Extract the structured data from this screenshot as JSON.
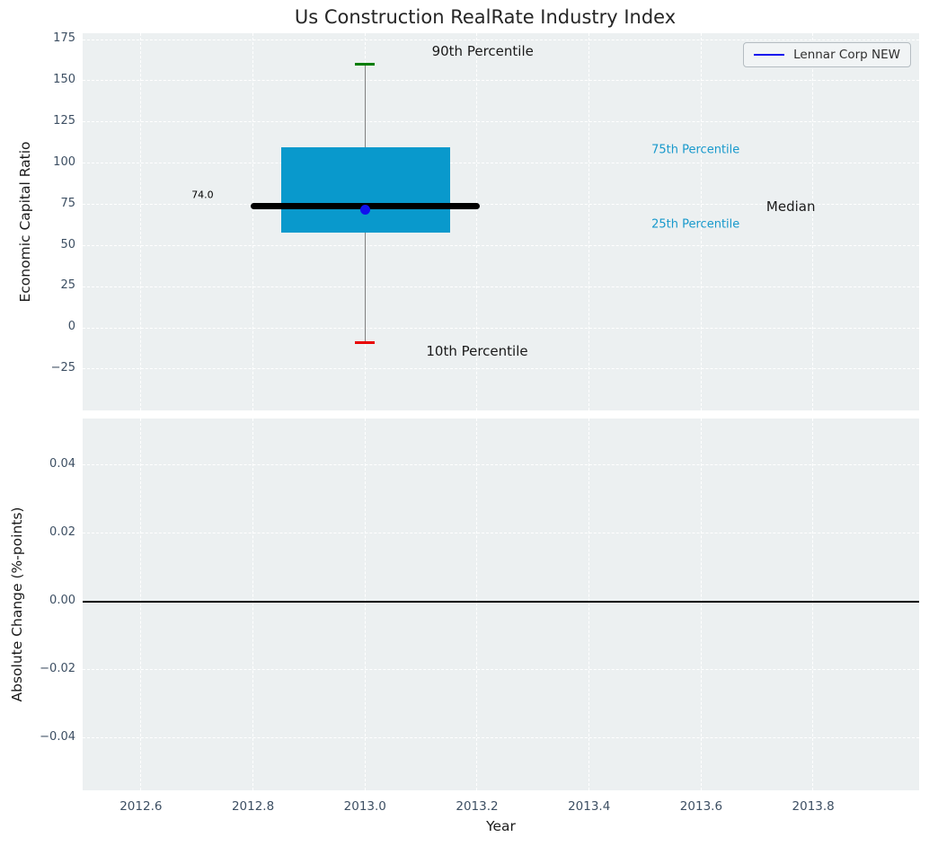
{
  "title": "Us Construction RealRate Industry Index",
  "legend": {
    "label": "Lennar Corp NEW",
    "line_color": "#1111ee"
  },
  "colors": {
    "plot_bg": "#ecf0f1",
    "grid": "#ffffff",
    "box_fill": "#0999cc",
    "median": "#000000",
    "whisker": "#808080",
    "cap_top": "#007d00",
    "cap_bottom": "#e80000",
    "company": "#1111ee",
    "tick_text": "#3d4f63",
    "percentile_text": "#1899cc",
    "zero_line": "#000000"
  },
  "chart_data": [
    {
      "type": "boxplot",
      "title": "Us Construction RealRate Industry Index",
      "ylabel": "Economic Capital Ratio",
      "xlim": [
        2012.496,
        2013.989
      ],
      "ylim": [
        -50,
        179
      ],
      "grid": true,
      "legend_position": "top-right",
      "yticks": {
        "labels": [
          "175",
          "150",
          "125",
          "100",
          "75",
          "50",
          "25",
          "0",
          "−25"
        ],
        "values": [
          175,
          150,
          125,
          100,
          75,
          50,
          25,
          0,
          -25
        ]
      },
      "box": {
        "x": 2013.0,
        "x_left": 2012.85,
        "x_right": 2013.152,
        "q1": 58,
        "q3": 110,
        "median": 74.0,
        "median_x_left": 2012.796,
        "median_x_right": 2013.205,
        "p10": -9,
        "p90": 160
      },
      "company_point": {
        "name": "Lennar Corp NEW",
        "x": 2013.0,
        "y": 72
      },
      "annotations": [
        {
          "name": "median-value-label",
          "text": "74.0",
          "x": 2012.71,
          "y": 81,
          "color": "#000000",
          "size": 11
        },
        {
          "name": "p90-label",
          "text": "90th Percentile",
          "x": 2013.21,
          "y": 168,
          "color": "#1a1a1a",
          "size": 15
        },
        {
          "name": "p10-label",
          "text": "10th Percentile",
          "x": 2013.2,
          "y": -14,
          "color": "#1a1a1a",
          "size": 15
        },
        {
          "name": "p75-label",
          "text": "75th Percentile",
          "x": 2013.59,
          "y": 108,
          "color": "#1899cc",
          "size": 13
        },
        {
          "name": "p25-label",
          "text": "25th Percentile",
          "x": 2013.59,
          "y": 63,
          "color": "#1899cc",
          "size": 13
        },
        {
          "name": "median-label",
          "text": "Median",
          "x": 2013.76,
          "y": 74,
          "color": "#1a1a1a",
          "size": 15
        }
      ]
    },
    {
      "type": "line",
      "ylabel": "Absolute Change (%-points)",
      "xlabel": "Year",
      "xlim": [
        2012.496,
        2013.989
      ],
      "ylim": [
        -0.0553,
        0.0537
      ],
      "grid": true,
      "zero_line": 0.0,
      "yticks": {
        "labels": [
          "0.04",
          "0.02",
          "0.00",
          "−0.02",
          "−0.04"
        ],
        "values": [
          0.04,
          0.02,
          0.0,
          -0.02,
          -0.04
        ]
      },
      "xticks": {
        "labels": [
          "2012.6",
          "2012.8",
          "2013.0",
          "2013.2",
          "2013.4",
          "2013.6",
          "2013.8"
        ],
        "values": [
          2012.6,
          2012.8,
          2013.0,
          2013.2,
          2013.4,
          2013.6,
          2013.8
        ]
      },
      "series": [
        {
          "name": "Lennar Corp NEW",
          "values": []
        }
      ]
    }
  ]
}
